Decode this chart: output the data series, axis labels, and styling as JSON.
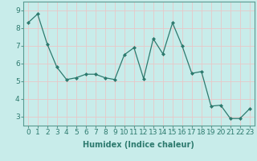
{
  "x": [
    0,
    1,
    2,
    3,
    4,
    5,
    6,
    7,
    8,
    9,
    10,
    11,
    12,
    13,
    14,
    15,
    16,
    17,
    18,
    19,
    20,
    21,
    22,
    23
  ],
  "y": [
    8.3,
    8.8,
    7.1,
    5.8,
    5.1,
    5.2,
    5.4,
    5.4,
    5.2,
    5.1,
    6.5,
    6.9,
    5.15,
    7.4,
    6.55,
    8.3,
    7.0,
    5.45,
    5.55,
    3.6,
    3.65,
    2.9,
    2.9,
    3.45
  ],
  "line_color": "#2d7a6e",
  "marker": "D",
  "marker_size": 2.0,
  "bg_color": "#c8ecea",
  "grid_color": "#e8c8c8",
  "xlabel": "Humidex (Indice chaleur)",
  "xlabel_fontsize": 7,
  "tick_fontsize": 6.5,
  "ylim": [
    2.5,
    9.5
  ],
  "yticks": [
    3,
    4,
    5,
    6,
    7,
    8,
    9
  ],
  "xlim": [
    -0.5,
    23.5
  ],
  "xticks": [
    0,
    1,
    2,
    3,
    4,
    5,
    6,
    7,
    8,
    9,
    10,
    11,
    12,
    13,
    14,
    15,
    16,
    17,
    18,
    19,
    20,
    21,
    22,
    23
  ],
  "spine_color": "#5a9a90",
  "tick_color": "#2d7a6e"
}
